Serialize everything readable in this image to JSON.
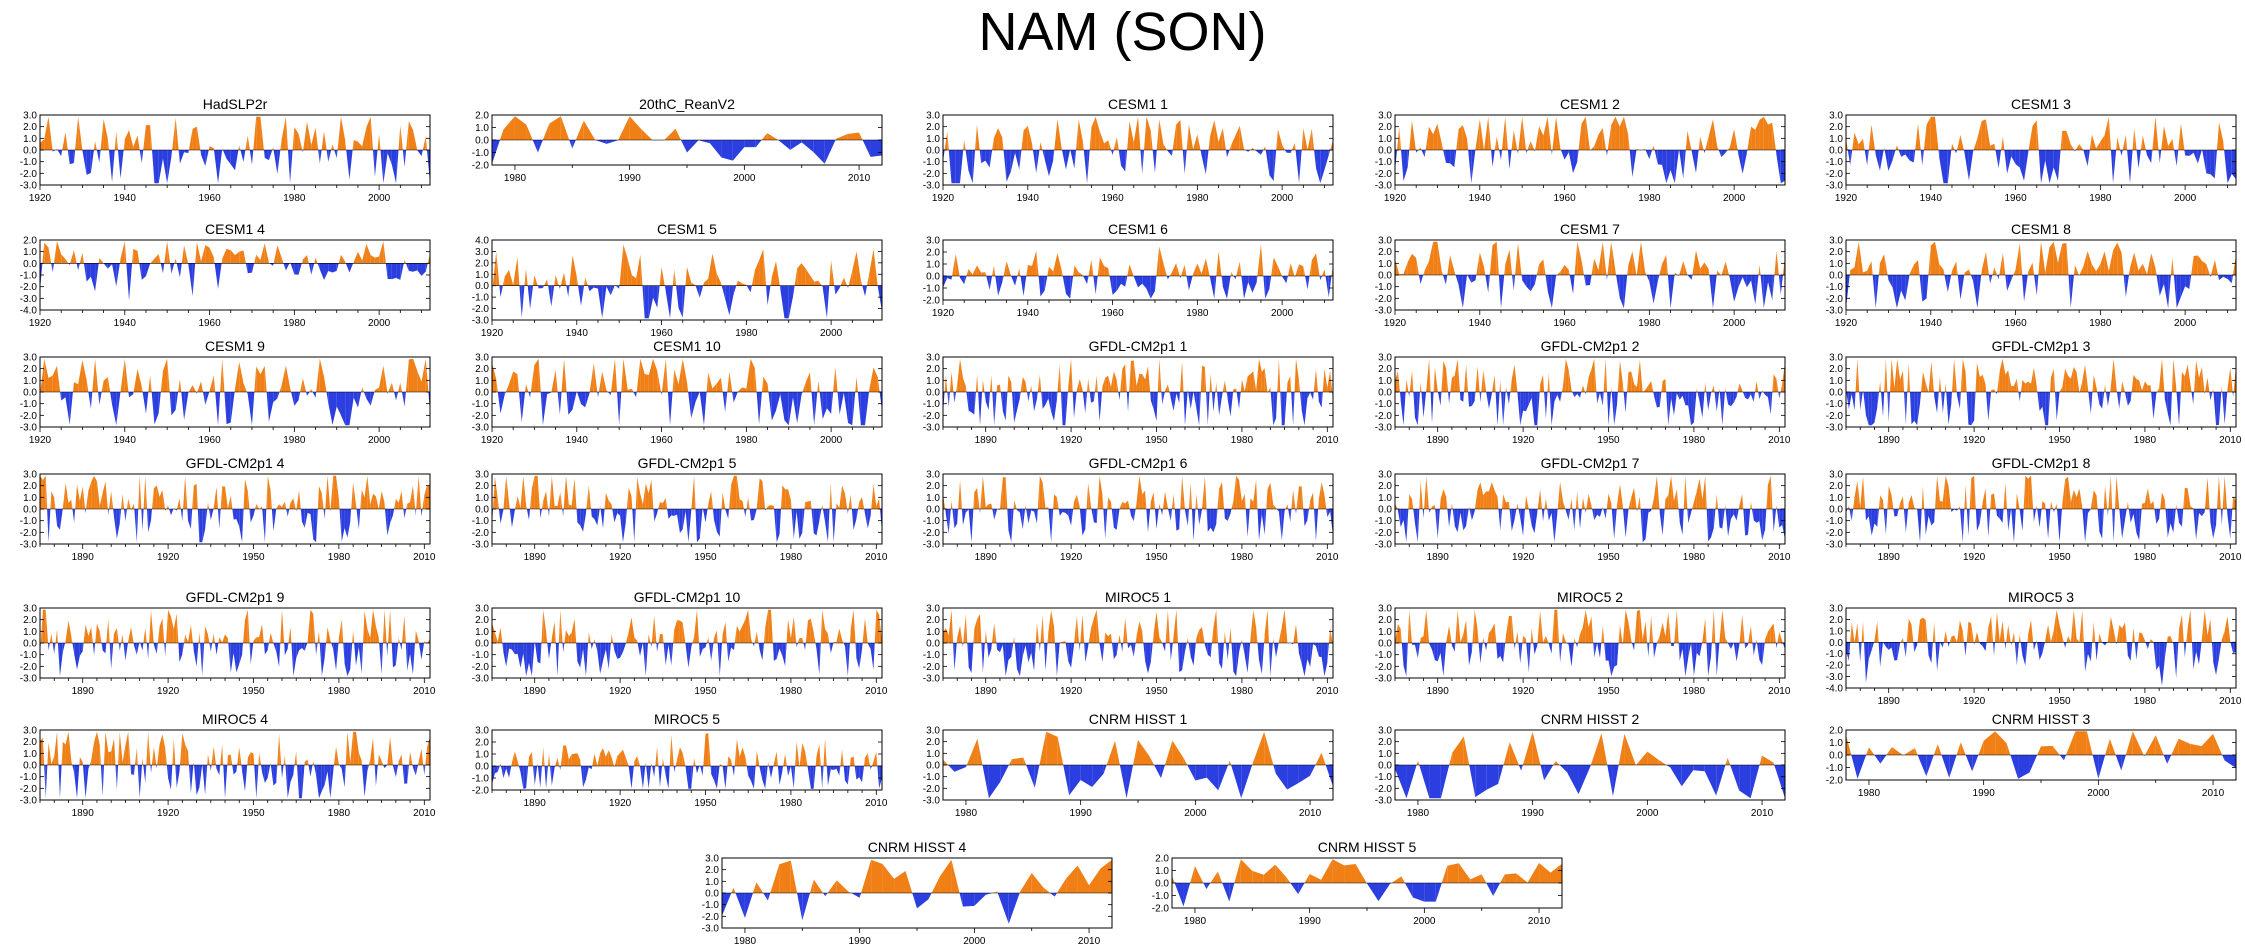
{
  "title": "NAM (SON)",
  "colors": {
    "positive": "#f07f16",
    "negative": "#2b3fe0"
  },
  "chart_data": [
    {
      "type": "area",
      "title": "HadSLP2r",
      "x_start": 1920,
      "x_end": 2012,
      "xticks": [
        1920,
        1940,
        1960,
        1980,
        2000
      ],
      "ylim": [
        -3,
        3
      ],
      "yticks": [
        3,
        2,
        1,
        0,
        -1,
        -2,
        -3
      ],
      "seed": 1
    },
    {
      "type": "area",
      "title": "20thC_ReanV2",
      "x_start": 1978,
      "x_end": 2012,
      "xticks": [
        1980,
        1990,
        2000,
        2010
      ],
      "ylim": [
        -2,
        2
      ],
      "yticks": [
        2,
        1,
        0,
        -1,
        -2
      ],
      "seed": 2
    },
    {
      "type": "area",
      "title": "CESM1 1",
      "x_start": 1920,
      "x_end": 2012,
      "xticks": [
        1920,
        1940,
        1960,
        1980,
        2000
      ],
      "ylim": [
        -3,
        3
      ],
      "yticks": [
        3,
        2,
        1,
        0,
        -1,
        -2,
        -3
      ],
      "seed": 3
    },
    {
      "type": "area",
      "title": "CESM1 2",
      "x_start": 1920,
      "x_end": 2012,
      "xticks": [
        1920,
        1940,
        1960,
        1980,
        2000
      ],
      "ylim": [
        -3,
        3
      ],
      "yticks": [
        3,
        2,
        1,
        0,
        -1,
        -2,
        -3
      ],
      "seed": 4
    },
    {
      "type": "area",
      "title": "CESM1 3",
      "x_start": 1920,
      "x_end": 2012,
      "xticks": [
        1920,
        1940,
        1960,
        1980,
        2000
      ],
      "ylim": [
        -3,
        3
      ],
      "yticks": [
        3,
        2,
        1,
        0,
        -1,
        -2,
        -3
      ],
      "seed": 5
    },
    {
      "type": "area",
      "title": "CESM1 4",
      "x_start": 1920,
      "x_end": 2012,
      "xticks": [
        1920,
        1940,
        1960,
        1980,
        2000
      ],
      "ylim": [
        -4,
        2
      ],
      "yticks": [
        2,
        1,
        0,
        -1,
        -2,
        -3,
        -4
      ],
      "seed": 6
    },
    {
      "type": "area",
      "title": "CESM1 5",
      "x_start": 1920,
      "x_end": 2012,
      "xticks": [
        1920,
        1940,
        1960,
        1980,
        2000
      ],
      "ylim": [
        -3,
        4
      ],
      "yticks": [
        4,
        3,
        2,
        1,
        0,
        -1,
        -2,
        -3
      ],
      "seed": 7
    },
    {
      "type": "area",
      "title": "CESM1 6",
      "x_start": 1920,
      "x_end": 2012,
      "xticks": [
        1920,
        1940,
        1960,
        1980,
        2000
      ],
      "ylim": [
        -2,
        3
      ],
      "yticks": [
        3,
        2,
        1,
        0,
        -1,
        -2
      ],
      "seed": 8
    },
    {
      "type": "area",
      "title": "CESM1 7",
      "x_start": 1920,
      "x_end": 2012,
      "xticks": [
        1920,
        1940,
        1960,
        1980,
        2000
      ],
      "ylim": [
        -3,
        3
      ],
      "yticks": [
        3,
        2,
        1,
        0,
        -1,
        -2,
        -3
      ],
      "seed": 9
    },
    {
      "type": "area",
      "title": "CESM1 8",
      "x_start": 1920,
      "x_end": 2012,
      "xticks": [
        1920,
        1940,
        1960,
        1980,
        2000
      ],
      "ylim": [
        -3,
        3
      ],
      "yticks": [
        3,
        2,
        1,
        0,
        -1,
        -2,
        -3
      ],
      "seed": 10
    },
    {
      "type": "area",
      "title": "CESM1 9",
      "x_start": 1920,
      "x_end": 2012,
      "xticks": [
        1920,
        1940,
        1960,
        1980,
        2000
      ],
      "ylim": [
        -3,
        3
      ],
      "yticks": [
        3,
        2,
        1,
        0,
        -1,
        -2,
        -3
      ],
      "seed": 11
    },
    {
      "type": "area",
      "title": "CESM1 10",
      "x_start": 1920,
      "x_end": 2012,
      "xticks": [
        1920,
        1940,
        1960,
        1980,
        2000
      ],
      "ylim": [
        -3,
        3
      ],
      "yticks": [
        3,
        2,
        1,
        0,
        -1,
        -2,
        -3
      ],
      "seed": 12
    },
    {
      "type": "area",
      "title": "GFDL-CM2p1 1",
      "x_start": 1875,
      "x_end": 2012,
      "xticks": [
        1890,
        1920,
        1950,
        1980,
        2010
      ],
      "ylim": [
        -3,
        3
      ],
      "yticks": [
        3,
        2,
        1,
        0,
        -1,
        -2,
        -3
      ],
      "seed": 13
    },
    {
      "type": "area",
      "title": "GFDL-CM2p1 2",
      "x_start": 1875,
      "x_end": 2012,
      "xticks": [
        1890,
        1920,
        1950,
        1980,
        2010
      ],
      "ylim": [
        -3,
        3
      ],
      "yticks": [
        3,
        2,
        1,
        0,
        -1,
        -2,
        -3
      ],
      "seed": 14
    },
    {
      "type": "area",
      "title": "GFDL-CM2p1 3",
      "x_start": 1875,
      "x_end": 2012,
      "xticks": [
        1890,
        1920,
        1950,
        1980,
        2010
      ],
      "ylim": [
        -3,
        3
      ],
      "yticks": [
        3,
        2,
        1,
        0,
        -1,
        -2,
        -3
      ],
      "seed": 15
    },
    {
      "type": "area",
      "title": "GFDL-CM2p1 4",
      "x_start": 1875,
      "x_end": 2012,
      "xticks": [
        1890,
        1920,
        1950,
        1980,
        2010
      ],
      "ylim": [
        -3,
        3
      ],
      "yticks": [
        3,
        2,
        1,
        0,
        -1,
        -2,
        -3
      ],
      "seed": 16
    },
    {
      "type": "area",
      "title": "GFDL-CM2p1 5",
      "x_start": 1875,
      "x_end": 2012,
      "xticks": [
        1890,
        1920,
        1950,
        1980,
        2010
      ],
      "ylim": [
        -3,
        3
      ],
      "yticks": [
        3,
        2,
        1,
        0,
        -1,
        -2,
        -3
      ],
      "seed": 17
    },
    {
      "type": "area",
      "title": "GFDL-CM2p1 6",
      "x_start": 1875,
      "x_end": 2012,
      "xticks": [
        1890,
        1920,
        1950,
        1980,
        2010
      ],
      "ylim": [
        -3,
        3
      ],
      "yticks": [
        3,
        2,
        1,
        0,
        -1,
        -2,
        -3
      ],
      "seed": 18
    },
    {
      "type": "area",
      "title": "GFDL-CM2p1 7",
      "x_start": 1875,
      "x_end": 2012,
      "xticks": [
        1890,
        1920,
        1950,
        1980,
        2010
      ],
      "ylim": [
        -3,
        3
      ],
      "yticks": [
        3,
        2,
        1,
        0,
        -1,
        -2,
        -3
      ],
      "seed": 19
    },
    {
      "type": "area",
      "title": "GFDL-CM2p1 8",
      "x_start": 1875,
      "x_end": 2012,
      "xticks": [
        1890,
        1920,
        1950,
        1980,
        2010
      ],
      "ylim": [
        -3,
        3
      ],
      "yticks": [
        3,
        2,
        1,
        0,
        -1,
        -2,
        -3
      ],
      "seed": 20
    },
    {
      "type": "area",
      "title": "GFDL-CM2p1 9",
      "x_start": 1875,
      "x_end": 2012,
      "xticks": [
        1890,
        1920,
        1950,
        1980,
        2010
      ],
      "ylim": [
        -3,
        3
      ],
      "yticks": [
        3,
        2,
        1,
        0,
        -1,
        -2,
        -3
      ],
      "seed": 21
    },
    {
      "type": "area",
      "title": "GFDL-CM2p1 10",
      "x_start": 1875,
      "x_end": 2012,
      "xticks": [
        1890,
        1920,
        1950,
        1980,
        2010
      ],
      "ylim": [
        -3,
        3
      ],
      "yticks": [
        3,
        2,
        1,
        0,
        -1,
        -2,
        -3
      ],
      "seed": 22
    },
    {
      "type": "area",
      "title": "MIROC5 1",
      "x_start": 1875,
      "x_end": 2012,
      "xticks": [
        1890,
        1920,
        1950,
        1980,
        2010
      ],
      "ylim": [
        -3,
        3
      ],
      "yticks": [
        3,
        2,
        1,
        0,
        -1,
        -2,
        -3
      ],
      "seed": 23
    },
    {
      "type": "area",
      "title": "MIROC5 2",
      "x_start": 1875,
      "x_end": 2012,
      "xticks": [
        1890,
        1920,
        1950,
        1980,
        2010
      ],
      "ylim": [
        -3,
        3
      ],
      "yticks": [
        3,
        2,
        1,
        0,
        -1,
        -2,
        -3
      ],
      "seed": 24
    },
    {
      "type": "area",
      "title": "MIROC5 3",
      "x_start": 1875,
      "x_end": 2012,
      "xticks": [
        1890,
        1920,
        1950,
        1980,
        2010
      ],
      "ylim": [
        -4,
        3
      ],
      "yticks": [
        3,
        2,
        1,
        0,
        -1,
        -2,
        -3,
        -4
      ],
      "seed": 25
    },
    {
      "type": "area",
      "title": "MIROC5 4",
      "x_start": 1875,
      "x_end": 2012,
      "xticks": [
        1890,
        1920,
        1950,
        1980,
        2010
      ],
      "ylim": [
        -3,
        3
      ],
      "yticks": [
        3,
        2,
        1,
        0,
        -1,
        -2,
        -3
      ],
      "seed": 26
    },
    {
      "type": "area",
      "title": "MIROC5 5",
      "x_start": 1875,
      "x_end": 2012,
      "xticks": [
        1890,
        1920,
        1950,
        1980,
        2010
      ],
      "ylim": [
        -2,
        3
      ],
      "yticks": [
        3,
        2,
        1,
        0,
        -1,
        -2
      ],
      "seed": 27
    },
    {
      "type": "area",
      "title": "CNRM HISST 1",
      "x_start": 1978,
      "x_end": 2012,
      "xticks": [
        1980,
        1990,
        2000,
        2010
      ],
      "ylim": [
        -3,
        3
      ],
      "yticks": [
        3,
        2,
        1,
        0,
        -1,
        -2,
        -3
      ],
      "seed": 28
    },
    {
      "type": "area",
      "title": "CNRM HISST 2",
      "x_start": 1978,
      "x_end": 2012,
      "xticks": [
        1980,
        1990,
        2000,
        2010
      ],
      "ylim": [
        -3,
        3
      ],
      "yticks": [
        3,
        2,
        1,
        0,
        -1,
        -2,
        -3
      ],
      "seed": 29
    },
    {
      "type": "area",
      "title": "CNRM HISST 3",
      "x_start": 1978,
      "x_end": 2012,
      "xticks": [
        1980,
        1990,
        2000,
        2010
      ],
      "ylim": [
        -2,
        2
      ],
      "yticks": [
        2,
        1,
        0,
        -1,
        -2
      ],
      "seed": 30
    },
    {
      "type": "area",
      "title": "CNRM HISST 4",
      "x_start": 1978,
      "x_end": 2012,
      "xticks": [
        1980,
        1990,
        2000,
        2010
      ],
      "ylim": [
        -3,
        3
      ],
      "yticks": [
        3,
        2,
        1,
        0,
        -1,
        -2,
        -3
      ],
      "seed": 31
    },
    {
      "type": "area",
      "title": "CNRM HISST 5",
      "x_start": 1978,
      "x_end": 2012,
      "xticks": [
        1980,
        1990,
        2000,
        2010
      ],
      "ylim": [
        -2,
        2
      ],
      "yticks": [
        2,
        1,
        0,
        -1,
        -2
      ],
      "seed": 32
    }
  ]
}
